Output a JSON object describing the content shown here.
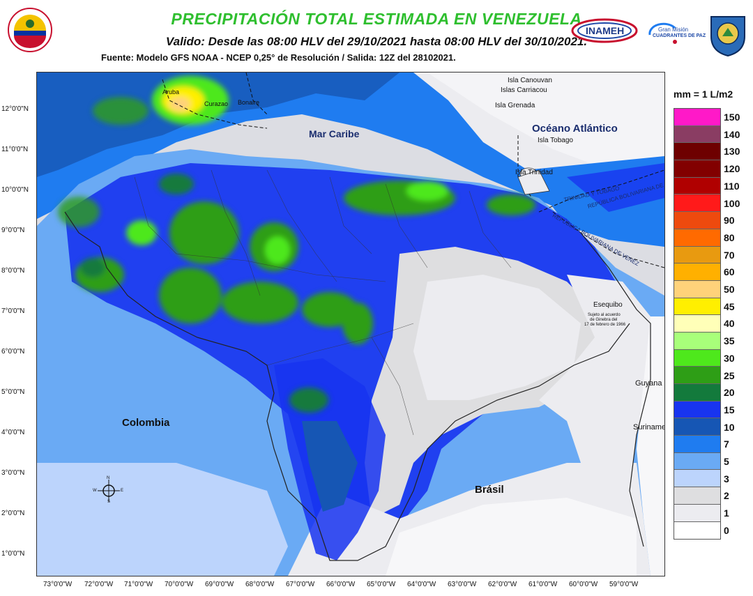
{
  "header": {
    "title": "PRECIPITACIÓN TOTAL ESTIMADA EN VENEZUELA",
    "subtitle": "Valido: Desde las 08:00 HLV del 29/10/2021 hasta 08:00 HLV del 30/10/2021.",
    "source": "Fuente: Modelo GFS NOAA - NCEP 0,25° de Resolución / Salida: 12Z del 28102021."
  },
  "logos": {
    "left": "venezuela-emblem-icon",
    "inameh": "INAMEH",
    "mission_line1": "Gran Misión",
    "mission_line2": "CUADRANTES DE PAZ",
    "right": "institution-shield-icon"
  },
  "map": {
    "lat_ticks": [
      "12°0'0\"N",
      "11°0'0\"N",
      "10°0'0\"N",
      "9°0'0\"N",
      "8°0'0\"N",
      "7°0'0\"N",
      "6°0'0\"N",
      "5°0'0\"N",
      "4°0'0\"N",
      "3°0'0\"N",
      "2°0'0\"N",
      "1°0'0\"N"
    ],
    "lon_ticks": [
      "73°0'0\"W",
      "72°0'0\"W",
      "71°0'0\"W",
      "70°0'0\"W",
      "69°0'0\"W",
      "68°0'0\"W",
      "67°0'0\"W",
      "66°0'0\"W",
      "65°0'0\"W",
      "64°0'0\"W",
      "63°0'0\"W",
      "62°0'0\"W",
      "61°0'0\"W",
      "60°0'0\"W",
      "59°0'0\"W"
    ],
    "places": {
      "aruba": "Aruba",
      "curazao": "Curazao",
      "bonaire": "Bonaire",
      "mar_caribe": "Mar Caribe",
      "isla_canouvan": "Isla Canouvan",
      "islas_carriacou": "Islas Carriacou",
      "isla_grenada": "Isla Grenada",
      "oceano": "Océano Atlántico",
      "isla_tobago": "Isla Tobago",
      "isla_trinidad": "Isla Trinidad",
      "trinidad_tobago": "TRINIDAD Y TOBAGO",
      "rep_venezuela_upper": "REPÚBLICA BOLIVARIANA DE VENEZUELA",
      "rep_venezuela_lower": "REPÚBLICA BOLIVARIANA DE VENEZ",
      "esequibo": "Esequibo",
      "esequibo_note1": "Sujeto al acuerdo",
      "esequibo_note2": "de Ginebra del",
      "esequibo_note3": "17 de febrero de 1966",
      "guyana": "Guyana",
      "suriname": "Suriname",
      "colombia": "Colombia",
      "brasil": "Brásil"
    },
    "compass": {
      "n": "N",
      "s": "S",
      "e": "E",
      "w": "W"
    }
  },
  "legend": {
    "title": "mm = 1 L/m2",
    "items": [
      {
        "value": "150",
        "color": "#ff19c8"
      },
      {
        "value": "140",
        "color": "#8a3d63"
      },
      {
        "value": "130",
        "color": "#6e0000"
      },
      {
        "value": "120",
        "color": "#820000"
      },
      {
        "value": "110",
        "color": "#b00000"
      },
      {
        "value": "100",
        "color": "#ff1a1a"
      },
      {
        "value": "90",
        "color": "#ee4a0e"
      },
      {
        "value": "80",
        "color": "#ff6a00"
      },
      {
        "value": "70",
        "color": "#e89a10"
      },
      {
        "value": "60",
        "color": "#ffb000"
      },
      {
        "value": "50",
        "color": "#ffd27a"
      },
      {
        "value": "45",
        "color": "#ffef00"
      },
      {
        "value": "40",
        "color": "#ffffb8"
      },
      {
        "value": "35",
        "color": "#a8ff7a"
      },
      {
        "value": "30",
        "color": "#4ee81c"
      },
      {
        "value": "25",
        "color": "#2e9e16"
      },
      {
        "value": "20",
        "color": "#137a3c"
      },
      {
        "value": "15",
        "color": "#1834f0"
      },
      {
        "value": "10",
        "color": "#1656b4"
      },
      {
        "value": "7",
        "color": "#1f7cf0"
      },
      {
        "value": "5",
        "color": "#6aaaf4"
      },
      {
        "value": "3",
        "color": "#bcd4fc"
      },
      {
        "value": "2",
        "color": "#dedee0"
      },
      {
        "value": "1",
        "color": "#ececf0"
      },
      {
        "value": "0",
        "color": "#ffffff"
      }
    ]
  }
}
